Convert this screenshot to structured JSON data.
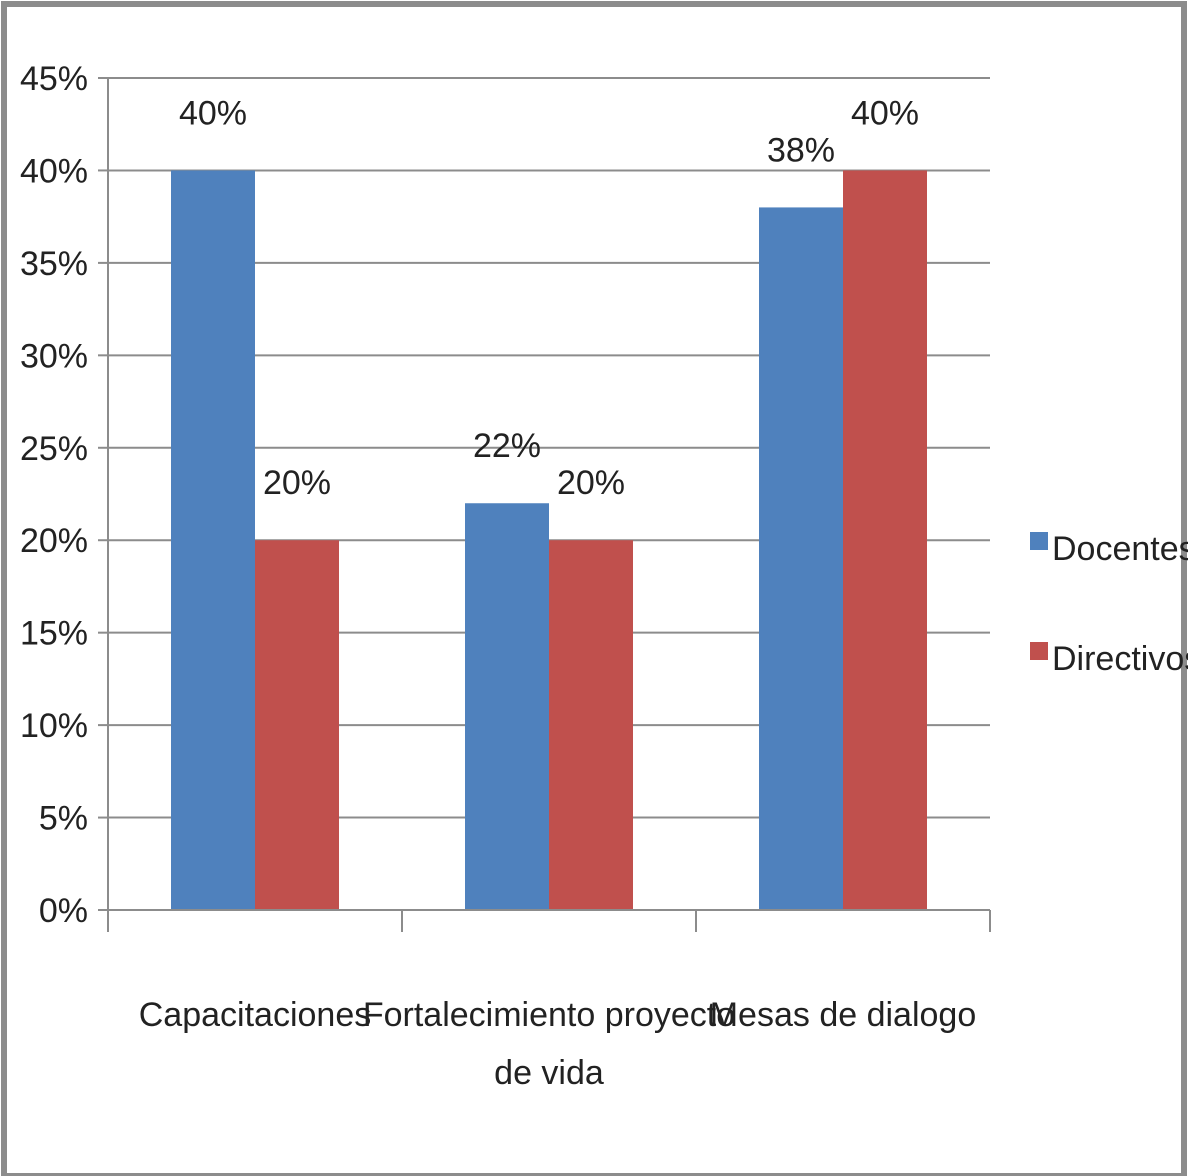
{
  "chart_data": {
    "type": "bar",
    "categories": [
      "Capacitaciones",
      "Fortalecimiento proyecto de vida",
      "Mesas de dialogo"
    ],
    "category_label_lines": [
      [
        "Capacitaciones"
      ],
      [
        "Fortalecimiento proyecto",
        "de vida"
      ],
      [
        "Mesas de dialogo"
      ]
    ],
    "series": [
      {
        "name": "Docentes",
        "values": [
          40,
          22,
          38
        ],
        "labels": [
          "40%",
          "22%",
          "38%"
        ],
        "color": "#4f81bd"
      },
      {
        "name": "Directivos",
        "values": [
          20,
          20,
          40
        ],
        "labels": [
          "20%",
          "20%",
          "40%"
        ],
        "color": "#c0504d"
      }
    ],
    "ylim": [
      0,
      45
    ],
    "yticks": [
      0,
      5,
      10,
      15,
      20,
      25,
      30,
      35,
      40,
      45
    ],
    "ytick_labels": [
      "0%",
      "5%",
      "10%",
      "15%",
      "20%",
      "25%",
      "30%",
      "35%",
      "40%",
      "45%"
    ],
    "grid": true,
    "legend_position": "right",
    "title": "",
    "xlabel": "",
    "ylabel": ""
  }
}
